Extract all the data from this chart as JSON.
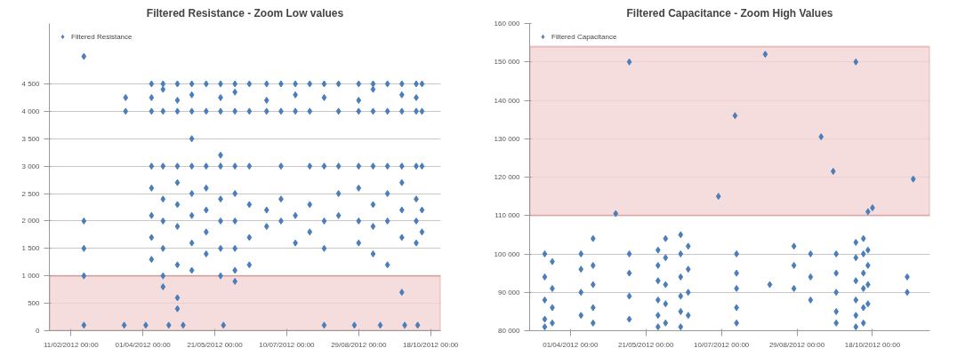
{
  "chart_data": [
    {
      "type": "scatter",
      "title": "Filtered Resistance - Zoom Low values",
      "marker": "diamond",
      "legend": "top left",
      "grid": "y",
      "xlim": [
        "2012-01-27",
        "2012-10-25"
      ],
      "xticks": [
        {
          "value": "2012-02-11",
          "label": "11/02/2012 00:00"
        },
        {
          "value": "2012-04-01",
          "label": "01/04/2012 00:00"
        },
        {
          "value": "2012-05-21",
          "label": "21/05/2012 00:00"
        },
        {
          "value": "2012-07-10",
          "label": "10/07/2012 00:00"
        },
        {
          "value": "2012-08-29",
          "label": "29/08/2012 00:00"
        },
        {
          "value": "2012-10-18",
          "label": "18/10/2012 00:00"
        }
      ],
      "ylim": [
        0,
        5600
      ],
      "yticks": [
        0,
        500,
        {
          "value": 1000,
          "label": "1 000"
        },
        {
          "value": 1500,
          "label": "1 500"
        },
        {
          "value": 2000,
          "label": "2 000"
        },
        {
          "value": 2500,
          "label": "2 500"
        },
        {
          "value": 3000,
          "label": "3 000"
        },
        {
          "value": 3500,
          "label": "3 500"
        },
        {
          "value": 4000,
          "label": "4 000"
        },
        {
          "value": 4500,
          "label": "4 500"
        }
      ],
      "bands": [
        {
          "axis": "y",
          "from": 0,
          "to": 1000,
          "color": "#f2d4d4"
        }
      ],
      "series": [
        {
          "name": "Filtered Resistance",
          "color": "#4a7ebb",
          "x": [
            "2012-02-20",
            "2012-02-20",
            "2012-02-20",
            "2012-02-20",
            "2012-02-20",
            "2012-03-19",
            "2012-03-20",
            "2012-03-20",
            "2012-04-03",
            "2012-04-19",
            "2012-04-29",
            "2012-05-27",
            "2012-08-05",
            "2012-08-26",
            "2012-09-13",
            "2012-09-30",
            "2012-10-09",
            "2012-04-07",
            "2012-04-07",
            "2012-04-07",
            "2012-04-07",
            "2012-04-07",
            "2012-04-07",
            "2012-04-07",
            "2012-04-07",
            "2012-04-15",
            "2012-04-15",
            "2012-04-15",
            "2012-04-15",
            "2012-04-15",
            "2012-04-15",
            "2012-04-15",
            "2012-04-15",
            "2012-04-15",
            "2012-04-25",
            "2012-04-25",
            "2012-04-25",
            "2012-04-25",
            "2012-04-25",
            "2012-04-25",
            "2012-04-25",
            "2012-04-25",
            "2012-04-25",
            "2012-04-25",
            "2012-05-05",
            "2012-05-05",
            "2012-05-05",
            "2012-05-05",
            "2012-05-05",
            "2012-05-05",
            "2012-05-05",
            "2012-05-05",
            "2012-05-05",
            "2012-05-15",
            "2012-05-15",
            "2012-05-15",
            "2012-05-15",
            "2012-05-15",
            "2012-05-15",
            "2012-05-15",
            "2012-05-25",
            "2012-05-25",
            "2012-05-25",
            "2012-05-25",
            "2012-05-25",
            "2012-05-25",
            "2012-05-25",
            "2012-05-25",
            "2012-05-25",
            "2012-06-04",
            "2012-06-04",
            "2012-06-04",
            "2012-06-04",
            "2012-06-04",
            "2012-06-04",
            "2012-06-04",
            "2012-06-04",
            "2012-06-04",
            "2012-06-14",
            "2012-06-14",
            "2012-06-14",
            "2012-06-14",
            "2012-06-14",
            "2012-06-14",
            "2012-06-26",
            "2012-06-26",
            "2012-06-26",
            "2012-06-26",
            "2012-06-26",
            "2012-07-06",
            "2012-07-06",
            "2012-07-06",
            "2012-07-06",
            "2012-07-06",
            "2012-07-16",
            "2012-07-16",
            "2012-07-16",
            "2012-07-16",
            "2012-07-16",
            "2012-07-26",
            "2012-07-26",
            "2012-07-26",
            "2012-07-26",
            "2012-07-26",
            "2012-08-05",
            "2012-08-05",
            "2012-08-05",
            "2012-08-05",
            "2012-08-05",
            "2012-08-15",
            "2012-08-15",
            "2012-08-15",
            "2012-08-15",
            "2012-08-15",
            "2012-08-29",
            "2012-08-29",
            "2012-08-29",
            "2012-08-29",
            "2012-08-29",
            "2012-08-29",
            "2012-08-29",
            "2012-09-08",
            "2012-09-08",
            "2012-09-08",
            "2012-09-08",
            "2012-09-08",
            "2012-09-08",
            "2012-09-08",
            "2012-09-18",
            "2012-09-18",
            "2012-09-18",
            "2012-09-18",
            "2012-09-18",
            "2012-09-18",
            "2012-09-28",
            "2012-09-28",
            "2012-09-28",
            "2012-09-28",
            "2012-09-28",
            "2012-09-28",
            "2012-09-28",
            "2012-09-28",
            "2012-10-08",
            "2012-10-08",
            "2012-10-08",
            "2012-10-08",
            "2012-10-08",
            "2012-10-08",
            "2012-10-08",
            "2012-10-12",
            "2012-10-12",
            "2012-10-12",
            "2012-10-12",
            "2012-10-12"
          ],
          "values": [
            5000,
            2000,
            1500,
            1000,
            100,
            100,
            4250,
            4000,
            100,
            100,
            100,
            100,
            100,
            100,
            100,
            100,
            100,
            4500,
            4250,
            4000,
            3000,
            2600,
            2100,
            1700,
            1300,
            4500,
            4400,
            4000,
            3000,
            2400,
            2000,
            1500,
            1000,
            800,
            4500,
            4200,
            4000,
            3000,
            2700,
            2300,
            1900,
            1200,
            600,
            400,
            4500,
            4300,
            4000,
            3500,
            3000,
            2500,
            2100,
            1600,
            1100,
            4500,
            4000,
            3000,
            2600,
            2200,
            1800,
            1400,
            4500,
            4250,
            4000,
            3200,
            3000,
            2400,
            2000,
            1500,
            1000,
            4500,
            4350,
            4000,
            3000,
            2500,
            2000,
            1500,
            1100,
            900,
            4500,
            4000,
            3000,
            2300,
            1700,
            1200,
            4500,
            4200,
            4000,
            2200,
            1900,
            4500,
            4000,
            3000,
            2400,
            2000,
            4500,
            4300,
            4000,
            2100,
            1600,
            4500,
            4000,
            3000,
            2300,
            1800,
            4500,
            4250,
            3000,
            2000,
            1500,
            4500,
            4000,
            3000,
            2500,
            2100,
            4500,
            4200,
            4000,
            3000,
            2600,
            2000,
            1600,
            4500,
            4400,
            4000,
            3000,
            2300,
            1900,
            1400,
            4500,
            4000,
            3000,
            2500,
            2000,
            1200,
            4500,
            4300,
            4000,
            3000,
            2700,
            2200,
            1700,
            700,
            4500,
            4250,
            4000,
            3000,
            2400,
            2000,
            1600,
            4500,
            4000,
            3000,
            2200,
            1800
          ]
        }
      ]
    },
    {
      "type": "scatter",
      "title": "Filtered Capacitance - Zoom High Values",
      "marker": "diamond",
      "legend": "top left",
      "grid": "y",
      "xlim": [
        "2012-03-05",
        "2012-11-25"
      ],
      "xticks": [
        {
          "value": "2012-04-01",
          "label": "01/04/2012 00:00"
        },
        {
          "value": "2012-05-21",
          "label": "21/05/2012 00:00"
        },
        {
          "value": "2012-07-10",
          "label": "10/07/2012 00:00"
        },
        {
          "value": "2012-08-29",
          "label": "29/08/2012 00:00"
        },
        {
          "value": "2012-10-18",
          "label": "18/10/2012 00:00"
        }
      ],
      "ylim": [
        80000,
        160000
      ],
      "yticks": [
        {
          "value": 80000,
          "label": "80 000"
        },
        {
          "value": 90000,
          "label": "90 000"
        },
        {
          "value": 100000,
          "label": "100 000"
        },
        {
          "value": 110000,
          "label": "110 000"
        },
        {
          "value": 120000,
          "label": "120 000"
        },
        {
          "value": 130000,
          "label": "130 000"
        },
        {
          "value": 140000,
          "label": "140 000"
        },
        {
          "value": 150000,
          "label": "150 000"
        },
        {
          "value": 160000,
          "label": "160 000"
        }
      ],
      "bands": [
        {
          "axis": "y",
          "from": 110000,
          "to": 154000,
          "color": "#f2d4d4"
        }
      ],
      "series": [
        {
          "name": "Filtered Capacitance",
          "color": "#4a7ebb",
          "x": [
            "2012-05-01",
            "2012-05-10",
            "2012-07-08",
            "2012-07-19",
            "2012-08-08",
            "2012-09-14",
            "2012-09-22",
            "2012-10-07",
            "2012-10-15",
            "2012-10-18",
            "2012-11-14",
            "2012-03-15",
            "2012-03-15",
            "2012-03-15",
            "2012-03-15",
            "2012-03-15",
            "2012-03-20",
            "2012-03-20",
            "2012-03-20",
            "2012-03-20",
            "2012-04-08",
            "2012-04-08",
            "2012-04-08",
            "2012-04-08",
            "2012-04-16",
            "2012-04-16",
            "2012-04-16",
            "2012-04-16",
            "2012-04-16",
            "2012-05-10",
            "2012-05-10",
            "2012-05-10",
            "2012-05-10",
            "2012-05-29",
            "2012-05-29",
            "2012-05-29",
            "2012-05-29",
            "2012-05-29",
            "2012-05-29",
            "2012-06-03",
            "2012-06-03",
            "2012-06-03",
            "2012-06-03",
            "2012-06-03",
            "2012-06-13",
            "2012-06-13",
            "2012-06-13",
            "2012-06-13",
            "2012-06-13",
            "2012-06-13",
            "2012-06-18",
            "2012-06-18",
            "2012-06-18",
            "2012-06-18",
            "2012-07-20",
            "2012-07-20",
            "2012-07-20",
            "2012-07-20",
            "2012-07-20",
            "2012-08-11",
            "2012-08-27",
            "2012-08-27",
            "2012-08-27",
            "2012-09-07",
            "2012-09-07",
            "2012-09-07",
            "2012-09-24",
            "2012-09-24",
            "2012-09-24",
            "2012-09-24",
            "2012-09-24",
            "2012-10-07",
            "2012-10-07",
            "2012-10-07",
            "2012-10-07",
            "2012-10-07",
            "2012-10-07",
            "2012-10-12",
            "2012-10-12",
            "2012-10-12",
            "2012-10-12",
            "2012-10-12",
            "2012-10-12",
            "2012-10-15",
            "2012-10-15",
            "2012-10-15",
            "2012-10-15",
            "2012-11-10",
            "2012-11-10"
          ],
          "values": [
            110500,
            150000,
            115000,
            136000,
            152000,
            130500,
            121500,
            150000,
            111000,
            112000,
            119500,
            100000,
            94000,
            88000,
            83000,
            81000,
            98000,
            91000,
            86000,
            82000,
            100000,
            96000,
            90000,
            84000,
            104000,
            97000,
            92000,
            86000,
            82000,
            100000,
            95000,
            89000,
            83000,
            101000,
            97000,
            93000,
            88000,
            84000,
            81000,
            104000,
            99000,
            92000,
            87000,
            82000,
            105000,
            100000,
            94000,
            89000,
            85000,
            81000,
            102000,
            96000,
            90000,
            84000,
            100000,
            95000,
            91000,
            86000,
            82000,
            92000,
            102000,
            97000,
            91000,
            100000,
            94000,
            88000,
            100000,
            95000,
            90000,
            85000,
            82000,
            103000,
            99000,
            93000,
            88000,
            84000,
            81000,
            104000,
            100000,
            95000,
            91000,
            86000,
            82000,
            101000,
            97000,
            92000,
            87000,
            94000,
            90000
          ]
        }
      ]
    }
  ]
}
